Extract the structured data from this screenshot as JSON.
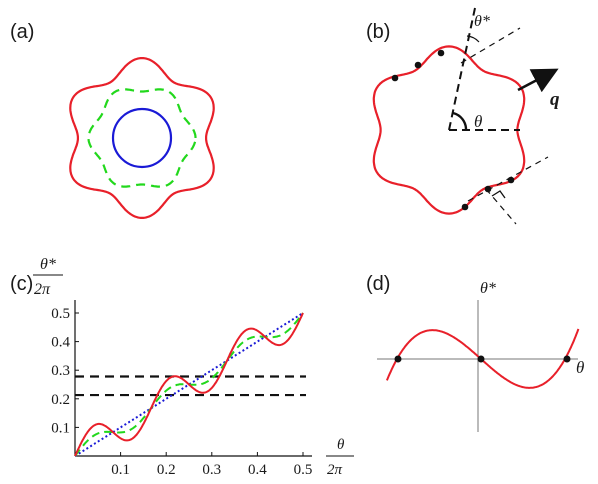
{
  "panels": {
    "a": {
      "label": "(a)"
    },
    "b": {
      "label": "(b)",
      "theta_star": "θ*",
      "theta": "θ",
      "q": "q"
    },
    "c": {
      "label": "(c)",
      "ylabel_num": "θ*",
      "ylabel_den": "2π",
      "xlabel_num": "θ",
      "xlabel_den": "2π"
    },
    "d": {
      "label": "(d)",
      "ylabel": "θ*",
      "xlabel": "θ"
    }
  },
  "colors": {
    "red": "#e8202a",
    "green": "#22d81c",
    "blue": "#1a1ad6",
    "black": "#111111"
  },
  "chart_data": {
    "type": "line",
    "x_ticks": [
      "0.1",
      "0.2",
      "0.3",
      "0.4",
      "0.5"
    ],
    "y_ticks": [
      "0.1",
      "0.2",
      "0.3",
      "0.4",
      "0.5"
    ],
    "xlim": [
      0,
      0.5
    ],
    "ylim": [
      0,
      0.5
    ],
    "hlines": [
      0.278,
      0.213
    ],
    "series": [
      {
        "kind": "identity",
        "amplitude": 0.0,
        "color": "blue",
        "style": "dotted"
      },
      {
        "kind": "wavy",
        "amplitude": 0.03,
        "color": "green",
        "style": "dashed"
      },
      {
        "kind": "wavy",
        "amplitude": 0.065,
        "color": "red",
        "style": "solid"
      }
    ]
  }
}
